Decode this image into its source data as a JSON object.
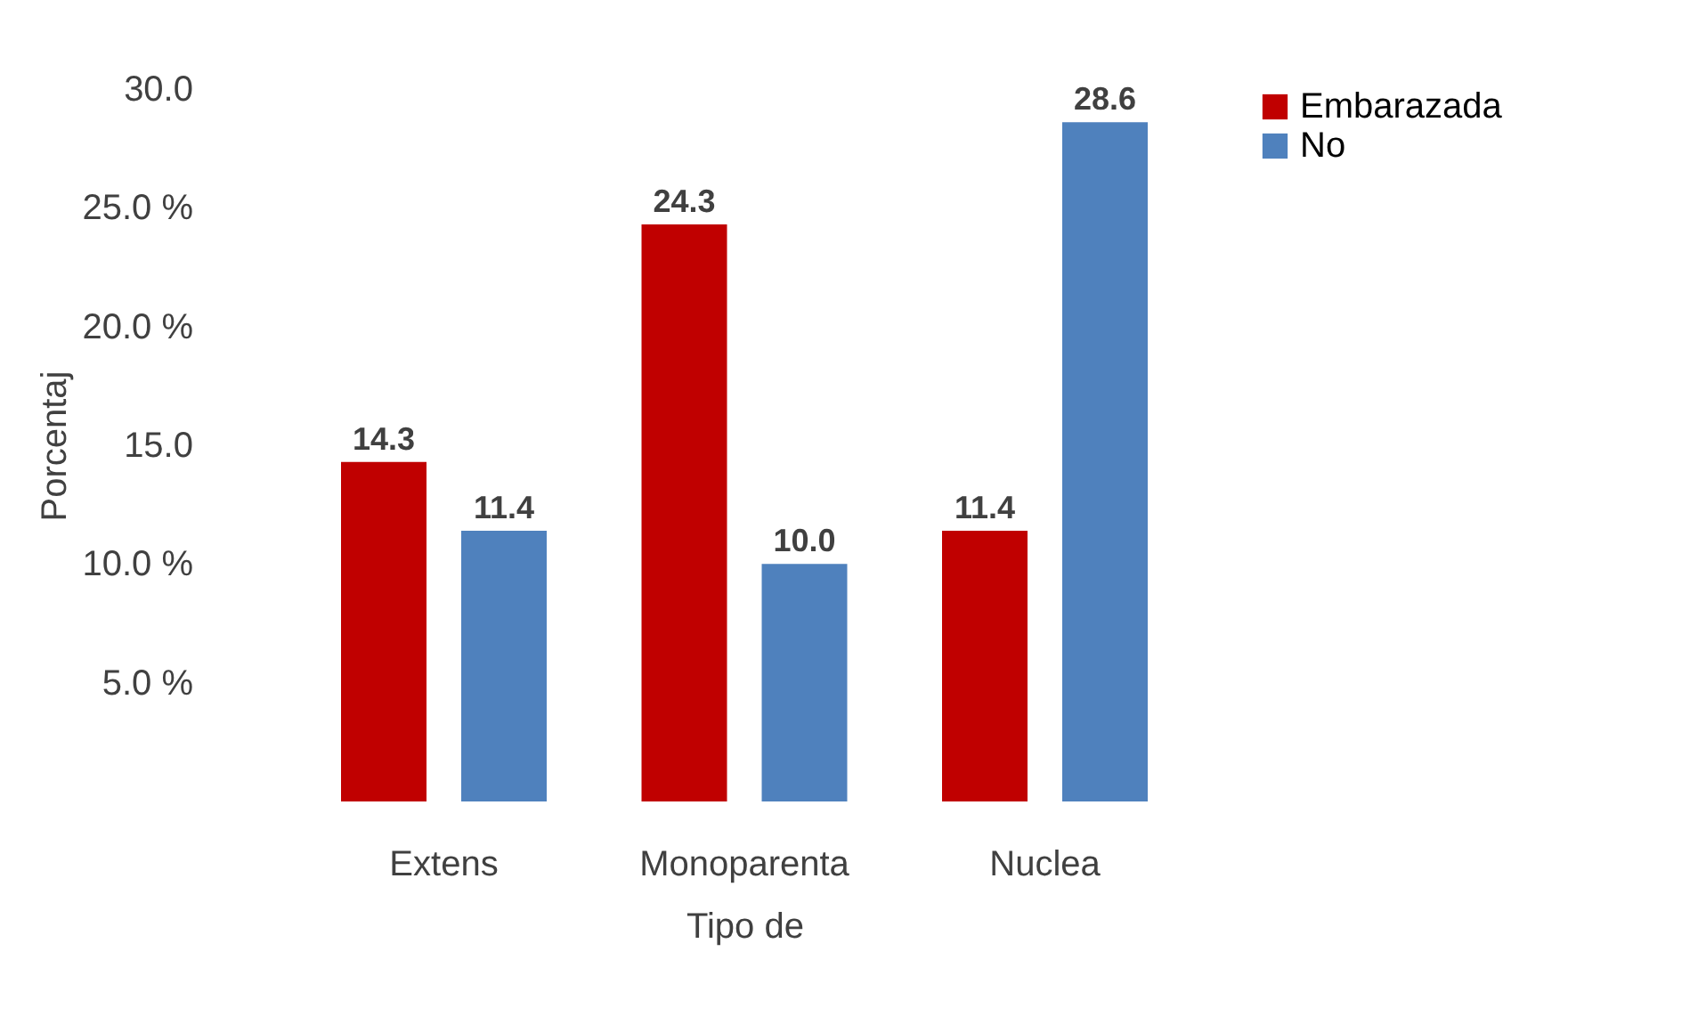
{
  "chart_data": {
    "type": "bar",
    "xlabel": "Tipo de",
    "ylabel": "Porcentaj",
    "categories": [
      "Extens",
      "Monoparenta",
      "Nuclea"
    ],
    "series": [
      {
        "name": "Embarazada",
        "color": "#c00000",
        "values": [
          14.3,
          24.3,
          11.4
        ],
        "value_labels": [
          "14.3",
          "24.3",
          "11.4"
        ]
      },
      {
        "name": "No",
        "color": "#4f81bd",
        "values": [
          11.4,
          10.0,
          28.6
        ],
        "value_labels": [
          "11.4",
          "10.0",
          "28.6"
        ]
      }
    ],
    "ylim": [
      0,
      30
    ],
    "yticks": [
      {
        "value": 5,
        "label": "5.0 %"
      },
      {
        "value": 10,
        "label": "10.0 %"
      },
      {
        "value": 15,
        "label": "15.0"
      },
      {
        "value": 20,
        "label": "20.0 %"
      },
      {
        "value": 25,
        "label": "25.0 %"
      },
      {
        "value": 30,
        "label": "30.0"
      }
    ],
    "legend": "right",
    "grid": false
  }
}
